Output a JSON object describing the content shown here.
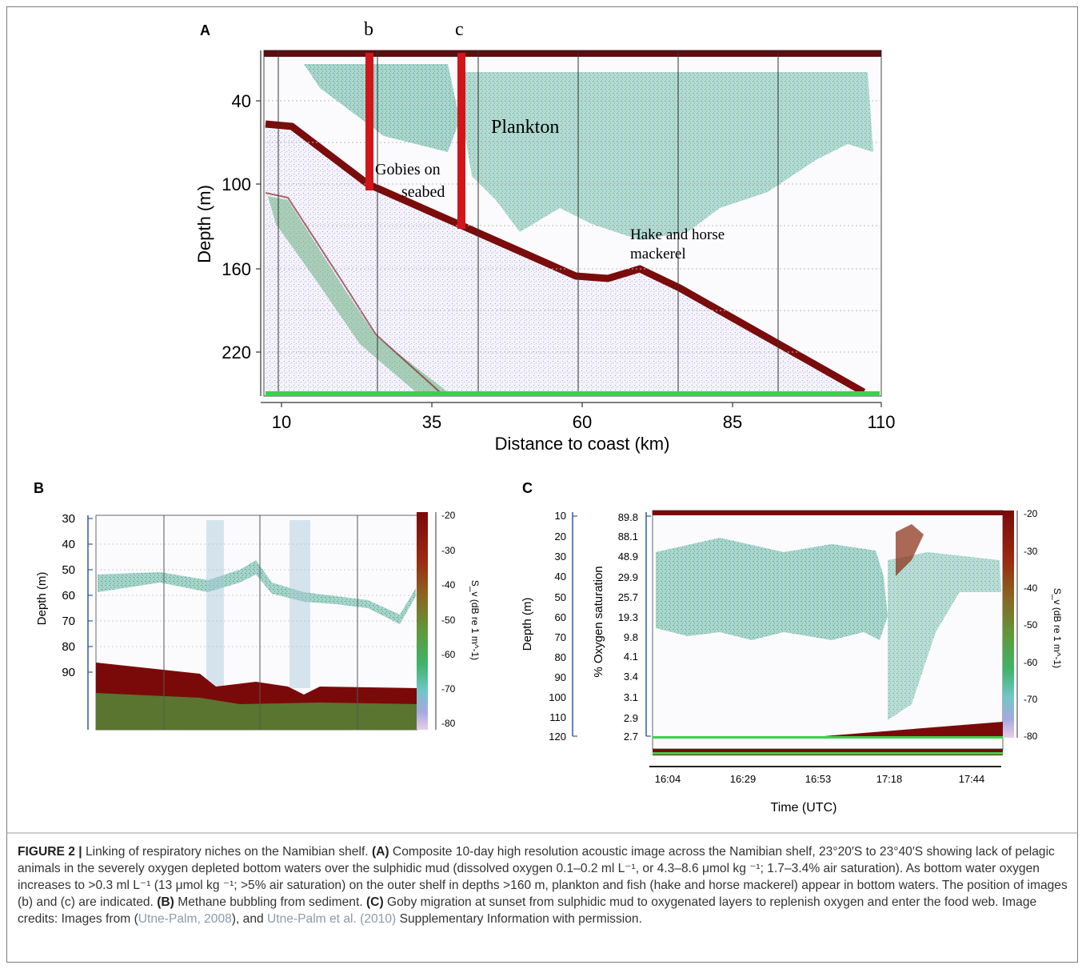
{
  "figure": {
    "panel_a": {
      "letter": "A",
      "marker_b": "b",
      "marker_c": "c",
      "ylabel": "Depth (m)",
      "xlabel": "Distance to coast (km)",
      "yticks": [
        "40",
        "100",
        "160",
        "220"
      ],
      "xticks": [
        "10",
        "35",
        "60",
        "85",
        "110"
      ],
      "label_plankton": "Plankton",
      "label_gobies_1": "Gobies on",
      "label_gobies_2": "seabed",
      "label_hake_1": "Hake and horse",
      "label_hake_2": "mackerel",
      "colors": {
        "seabed": "#7a0c0c",
        "plankton": "#4aa878",
        "marker": "#d0161b"
      }
    },
    "panel_b": {
      "letter": "B",
      "ylabel": "Depth (m)",
      "yticks": [
        "30",
        "40",
        "50",
        "60",
        "70",
        "80",
        "90"
      ],
      "cbar_label": "S_v (dB re 1 m^-1)",
      "cbar_ticks": [
        "-20",
        "-30",
        "-40",
        "-50",
        "-60",
        "-70",
        "-80"
      ]
    },
    "panel_c": {
      "letter": "C",
      "ylabel_depth": "Depth (m)",
      "ylabel_oxygen": "% Oxygen saturation",
      "depth_ticks": [
        "10",
        "20",
        "30",
        "40",
        "50",
        "60",
        "70",
        "80",
        "90",
        "100",
        "110",
        "120"
      ],
      "oxygen_ticks": [
        "89.8",
        "88.1",
        "48.9",
        "29.9",
        "25.7",
        "19.3",
        "9.8",
        "4.1",
        "3.4",
        "3.1",
        "2.9",
        "2.7"
      ],
      "xlabel": "Time (UTC)",
      "time_ticks": [
        "16:04",
        "16:29",
        "16:53",
        "17:18",
        "17:44"
      ],
      "cbar_label": "S_v (dB re 1 m^-1)",
      "cbar_ticks": [
        "-20",
        "-30",
        "-40",
        "-50",
        "-60",
        "-70",
        "-80"
      ]
    },
    "caption": {
      "lead": "FIGURE 2 |",
      "intro": " Linking of respiratory niches on the Namibian shelf. ",
      "a_tag": "(A)",
      "a_text": " Composite 10-day high resolution acoustic image across the Namibian shelf, 23°20′S to 23°40′S showing lack of pelagic animals in the severely oxygen depleted bottom waters over the sulphidic mud (dissolved oxygen 0.1–0.2 ml L⁻¹, or 4.3–8.6 μmol kg ⁻¹; 1.7–3.4% air saturation). As bottom water oxygen increases to >0.3 ml L⁻¹ (13 μmol kg ⁻¹; >5% air saturation) on the outer shelf in depths >160 m, plankton and fish (hake and horse mackerel) appear in bottom waters. The position of images (b) and (c) are indicated. ",
      "b_tag": "(B)",
      "b_text": " Methane bubbling from sediment. ",
      "c_tag": "(C)",
      "c_text": " Goby migration at sunset from sulphidic mud to oxygenated layers to replenish oxygen and enter the food web. Image credits: Images from (",
      "ref1": "Utne-Palm, 2008",
      "mid": "), and ",
      "ref2": "Utne-Palm et al. (2010)",
      "tail": " Supplementary Information with permission."
    }
  }
}
